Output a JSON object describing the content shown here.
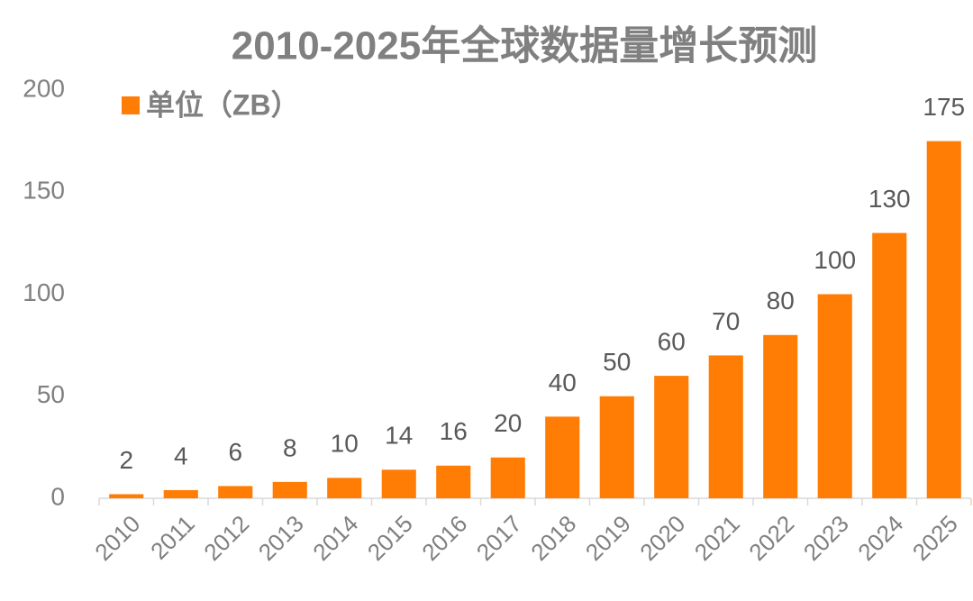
{
  "chart_data": {
    "type": "bar",
    "title": "2010-2025年全球数据量增长预测",
    "categories": [
      "2010",
      "2011",
      "2012",
      "2013",
      "2014",
      "2015",
      "2016",
      "2017",
      "2018",
      "2019",
      "2020",
      "2021",
      "2022",
      "2023",
      "2024",
      "2025"
    ],
    "series": [
      {
        "name": "单位（ZB）",
        "color": "#ff7c05",
        "values": [
          2,
          4,
          6,
          8,
          10,
          14,
          16,
          20,
          40,
          50,
          60,
          70,
          80,
          100,
          130,
          175
        ]
      }
    ],
    "ylim": [
      0,
      200
    ],
    "yticks": [
      0,
      50,
      100,
      150,
      200
    ],
    "grid": false,
    "legend": "top-left"
  }
}
